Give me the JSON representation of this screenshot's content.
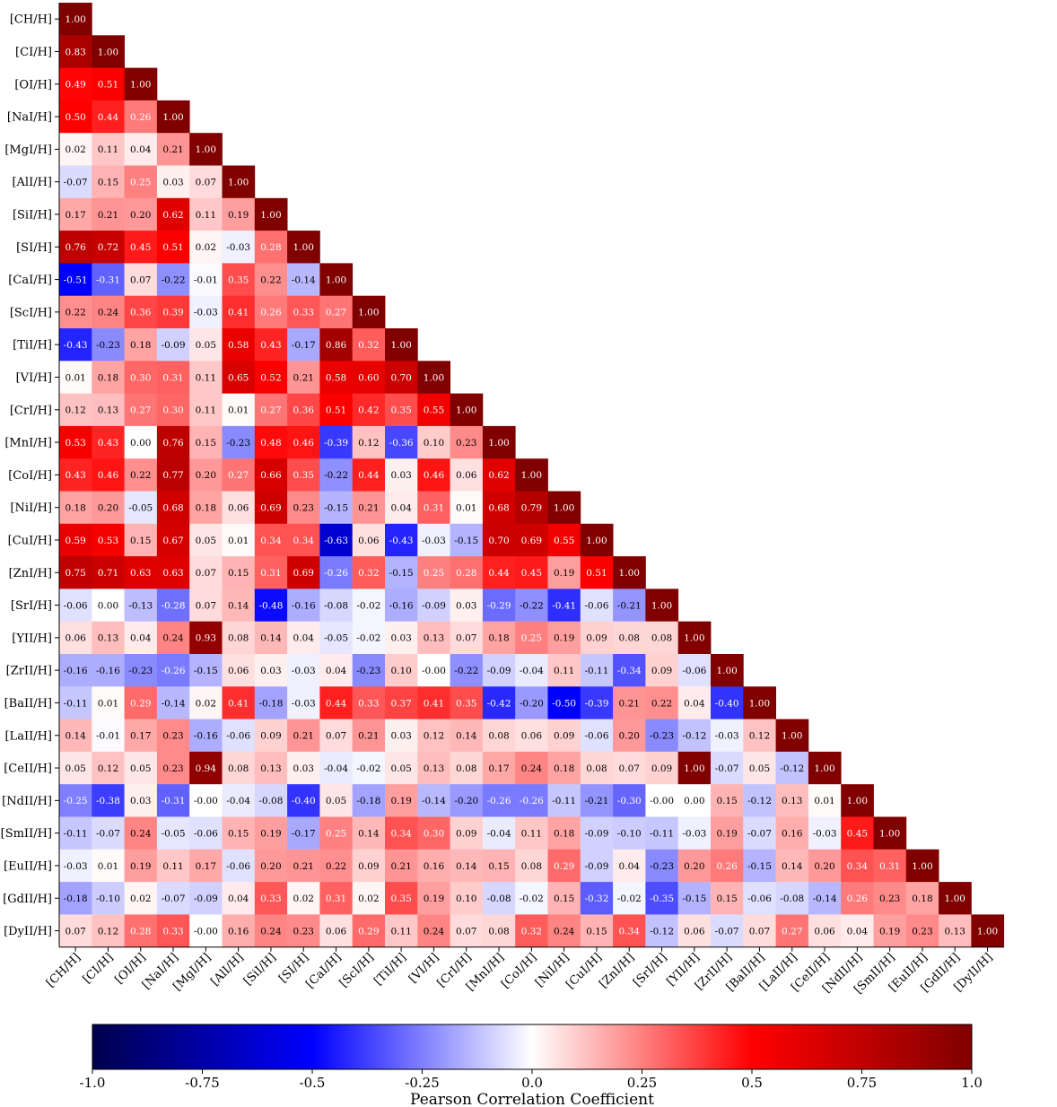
{
  "chart_data": {
    "type": "heatmap",
    "labels": [
      "[CH/H]",
      "[CI/H]",
      "[OI/H]",
      "[NaI/H]",
      "[MgI/H]",
      "[AlI/H]",
      "[SiI/H]",
      "[SI/H]",
      "[CaI/H]",
      "[ScI/H]",
      "[TiI/H]",
      "[VI/H]",
      "[CrI/H]",
      "[MnI/H]",
      "[CoI/H]",
      "[NiI/H]",
      "[CuI/H]",
      "[ZnI/H]",
      "[SrI/H]",
      "[YII/H]",
      "[ZrII/H]",
      "[BaII/H]",
      "[LaII/H]",
      "[CeII/H]",
      "[NdII/H]",
      "[SmII/H]",
      "[EuII/H]",
      "[GdII/H]",
      "[DyII/H]"
    ],
    "matrix": [
      [
        "1.00"
      ],
      [
        "0.83",
        "1.00"
      ],
      [
        "0.49",
        "0.51",
        "1.00"
      ],
      [
        "0.50",
        "0.44",
        "0.26",
        "1.00"
      ],
      [
        "0.02",
        "0.11",
        "0.04",
        "0.21",
        "1.00"
      ],
      [
        "-0.07",
        "0.15",
        "0.25",
        "0.03",
        "0.07",
        "1.00"
      ],
      [
        "0.17",
        "0.21",
        "0.20",
        "0.62",
        "0.11",
        "0.19",
        "1.00"
      ],
      [
        "0.76",
        "0.72",
        "0.45",
        "0.51",
        "0.02",
        "-0.03",
        "0.28",
        "1.00"
      ],
      [
        "-0.51",
        "-0.31",
        "0.07",
        "-0.22",
        "-0.01",
        "0.35",
        "0.22",
        "-0.14",
        "1.00"
      ],
      [
        "0.22",
        "0.24",
        "0.36",
        "0.39",
        "-0.03",
        "0.41",
        "0.26",
        "0.33",
        "0.27",
        "1.00"
      ],
      [
        "-0.43",
        "-0.23",
        "0.18",
        "-0.09",
        "0.05",
        "0.58",
        "0.43",
        "-0.17",
        "0.86",
        "0.32",
        "1.00"
      ],
      [
        "0.01",
        "0.18",
        "0.30",
        "0.31",
        "0.11",
        "0.65",
        "0.52",
        "0.21",
        "0.58",
        "0.60",
        "0.70",
        "1.00"
      ],
      [
        "0.12",
        "0.13",
        "0.27",
        "0.30",
        "0.11",
        "0.01",
        "0.27",
        "0.36",
        "0.51",
        "0.42",
        "0.35",
        "0.55",
        "1.00"
      ],
      [
        "0.53",
        "0.43",
        "0.00",
        "0.76",
        "0.15",
        "-0.23",
        "0.48",
        "0.46",
        "-0.39",
        "0.12",
        "-0.36",
        "0.10",
        "0.23",
        "1.00"
      ],
      [
        "0.43",
        "0.46",
        "0.22",
        "0.77",
        "0.20",
        "0.27",
        "0.66",
        "0.35",
        "-0.22",
        "0.44",
        "0.03",
        "0.46",
        "0.06",
        "0.62",
        "1.00"
      ],
      [
        "0.18",
        "0.20",
        "-0.05",
        "0.68",
        "0.18",
        "0.06",
        "0.69",
        "0.23",
        "-0.15",
        "0.21",
        "0.04",
        "0.31",
        "0.01",
        "0.68",
        "0.79",
        "1.00"
      ],
      [
        "0.59",
        "0.53",
        "0.15",
        "0.67",
        "0.05",
        "0.01",
        "0.34",
        "0.34",
        "-0.63",
        "0.06",
        "-0.43",
        "-0.03",
        "-0.15",
        "0.70",
        "0.69",
        "0.55",
        "1.00"
      ],
      [
        "0.75",
        "0.71",
        "0.63",
        "0.63",
        "0.07",
        "0.15",
        "0.31",
        "0.69",
        "-0.26",
        "0.32",
        "-0.15",
        "0.25",
        "0.28",
        "0.44",
        "0.45",
        "0.19",
        "0.51",
        "1.00"
      ],
      [
        "-0.06",
        "0.00",
        "-0.13",
        "-0.28",
        "0.07",
        "0.14",
        "-0.48",
        "-0.16",
        "-0.08",
        "-0.02",
        "-0.16",
        "-0.09",
        "0.03",
        "-0.29",
        "-0.22",
        "-0.41",
        "-0.06",
        "-0.21",
        "1.00"
      ],
      [
        "0.06",
        "0.13",
        "0.04",
        "0.24",
        "0.93",
        "0.08",
        "0.14",
        "0.04",
        "-0.05",
        "-0.02",
        "0.03",
        "0.13",
        "0.07",
        "0.18",
        "0.25",
        "0.19",
        "0.09",
        "0.08",
        "0.08",
        "1.00"
      ],
      [
        "-0.16",
        "-0.16",
        "-0.23",
        "-0.26",
        "-0.15",
        "0.06",
        "0.03",
        "-0.03",
        "0.04",
        "-0.23",
        "0.10",
        "-0.00",
        "-0.22",
        "-0.09",
        "-0.04",
        "0.11",
        "-0.11",
        "-0.34",
        "0.09",
        "-0.06",
        "1.00"
      ],
      [
        "-0.11",
        "0.01",
        "0.29",
        "-0.14",
        "0.02",
        "0.41",
        "-0.18",
        "-0.03",
        "0.44",
        "0.33",
        "0.37",
        "0.41",
        "0.35",
        "-0.42",
        "-0.20",
        "-0.50",
        "-0.39",
        "0.21",
        "0.22",
        "0.04",
        "-0.40",
        "1.00"
      ],
      [
        "0.14",
        "-0.01",
        "0.17",
        "0.23",
        "-0.16",
        "-0.06",
        "0.09",
        "0.21",
        "0.07",
        "0.21",
        "0.03",
        "0.12",
        "0.14",
        "0.08",
        "0.06",
        "0.09",
        "-0.06",
        "0.20",
        "-0.23",
        "-0.12",
        "-0.03",
        "0.12",
        "1.00"
      ],
      [
        "0.05",
        "0.12",
        "0.05",
        "0.23",
        "0.94",
        "0.08",
        "0.13",
        "0.03",
        "-0.04",
        "-0.02",
        "0.05",
        "0.13",
        "0.08",
        "0.17",
        "0.24",
        "0.18",
        "0.08",
        "0.07",
        "0.09",
        "1.00",
        "-0.07",
        "0.05",
        "-0.12",
        "1.00"
      ],
      [
        "-0.25",
        "-0.38",
        "0.03",
        "-0.31",
        "-0.00",
        "-0.04",
        "-0.08",
        "-0.40",
        "0.05",
        "-0.18",
        "0.19",
        "-0.14",
        "-0.20",
        "-0.26",
        "-0.26",
        "-0.11",
        "-0.21",
        "-0.30",
        "-0.00",
        "0.00",
        "0.15",
        "-0.12",
        "0.13",
        "0.01",
        "1.00"
      ],
      [
        "-0.11",
        "-0.07",
        "0.24",
        "-0.05",
        "-0.06",
        "0.15",
        "0.19",
        "-0.17",
        "0.25",
        "0.14",
        "0.34",
        "0.30",
        "0.09",
        "-0.04",
        "0.11",
        "0.18",
        "-0.09",
        "-0.10",
        "-0.11",
        "-0.03",
        "0.19",
        "-0.07",
        "0.16",
        "-0.03",
        "0.45",
        "1.00"
      ],
      [
        "-0.03",
        "0.01",
        "0.19",
        "0.11",
        "0.17",
        "-0.06",
        "0.20",
        "0.21",
        "0.22",
        "0.09",
        "0.21",
        "0.16",
        "0.14",
        "0.15",
        "0.08",
        "0.29",
        "-0.09",
        "0.04",
        "-0.23",
        "0.20",
        "0.26",
        "-0.15",
        "0.14",
        "0.20",
        "0.34",
        "0.31",
        "1.00"
      ],
      [
        "-0.18",
        "-0.10",
        "0.02",
        "-0.07",
        "-0.09",
        "0.04",
        "0.33",
        "0.02",
        "0.31",
        "0.02",
        "0.35",
        "0.19",
        "0.10",
        "-0.08",
        "-0.02",
        "0.15",
        "-0.32",
        "-0.02",
        "-0.35",
        "-0.15",
        "0.15",
        "-0.06",
        "-0.08",
        "-0.14",
        "0.26",
        "0.23",
        "0.18",
        "1.00"
      ],
      [
        "0.07",
        "0.12",
        "0.28",
        "0.33",
        "-0.00",
        "0.16",
        "0.24",
        "0.23",
        "0.06",
        "0.29",
        "0.11",
        "0.24",
        "0.07",
        "0.08",
        "0.32",
        "0.24",
        "0.15",
        "0.34",
        "-0.12",
        "0.06",
        "-0.07",
        "0.07",
        "0.27",
        "0.06",
        "0.04",
        "0.19",
        "0.23",
        "0.13",
        "1.00"
      ]
    ],
    "colorbar": {
      "label": "Pearson Correlation Coefficient",
      "ticks": [
        "-1.0",
        "-0.75",
        "-0.5",
        "-0.25",
        "0.0",
        "0.25",
        "0.5",
        "0.75",
        "1.0"
      ],
      "range": [
        -1.0,
        1.0
      ],
      "colormap": "seismic"
    },
    "colors": {
      "neg_end": "#00004d",
      "neg_mid": "#0000ff",
      "zero": "#ffffff",
      "pos_mid": "#ff0000",
      "pos_end": "#800000"
    }
  }
}
